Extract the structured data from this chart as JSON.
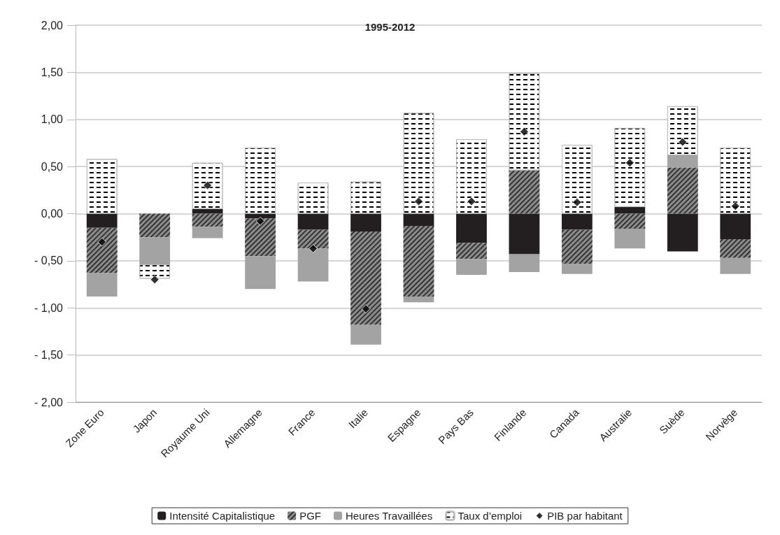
{
  "chart_data": {
    "type": "bar",
    "title": "1995-2012",
    "stacked": true,
    "grid": "y",
    "legend": "bottom",
    "categories": [
      "Zone Euro",
      "Japon",
      "Royaume Uni",
      "Allemagne",
      "France",
      "Italie",
      "Espagne",
      "Pays Bas",
      "Finlande",
      "Canada",
      "Australie",
      "Suède",
      "Norvège"
    ],
    "ylim": [
      -2,
      2
    ],
    "yticks": [
      {
        "value": -2,
        "label": "- 2,00"
      },
      {
        "value": -1.5,
        "label": "- 1,50"
      },
      {
        "value": -1,
        "label": "- 1,00"
      },
      {
        "value": -0.5,
        "label": "- 0,50"
      },
      {
        "value": 0,
        "label": "0,00"
      },
      {
        "value": 0.5,
        "label": "0,50"
      },
      {
        "value": 1,
        "label": "1,00"
      },
      {
        "value": 1.5,
        "label": "1,50"
      },
      {
        "value": 2,
        "label": "2,00"
      }
    ],
    "series": [
      {
        "name": "Intensité Capitalistique",
        "color": "#231f20",
        "values": [
          -0.15,
          0,
          0.05,
          -0.05,
          -0.17,
          -0.19,
          -0.13,
          -0.31,
          -0.43,
          -0.17,
          0.07,
          -0.4,
          -0.27
        ]
      },
      {
        "name": "PGF",
        "color": "#8c8c8c",
        "values": [
          -0.48,
          -0.25,
          -0.14,
          -0.4,
          -0.2,
          -0.99,
          -0.75,
          -0.17,
          0.46,
          -0.36,
          -0.16,
          0.49,
          -0.2
        ]
      },
      {
        "name": "Heures Travaillées",
        "color": "#a3a3a4",
        "values": [
          -0.25,
          -0.29,
          -0.12,
          -0.35,
          -0.35,
          -0.21,
          -0.06,
          -0.17,
          -0.19,
          -0.11,
          -0.21,
          0.13,
          -0.17
        ]
      },
      {
        "name": "Taux d’emploi",
        "color": "#ffffff",
        "values": [
          0.58,
          -0.15,
          0.49,
          0.7,
          0.33,
          0.34,
          1.07,
          0.79,
          1.03,
          0.73,
          0.84,
          0.52,
          0.7
        ]
      },
      {
        "name": "PIB par habitant",
        "type": "scatter",
        "marker": "diamond",
        "color": "#000000",
        "x": [
          "Zone Euro",
          "Japon",
          "Royaume Uni",
          "Allemagne",
          "France",
          "Italie",
          "Espagne",
          "Pays Bas",
          "Finlande",
          "Canada",
          "Australie",
          "Suède",
          "Norvège"
        ],
        "values": [
          -0.3,
          -0.7,
          0.3,
          -0.08,
          -0.37,
          -1.01,
          0.13,
          0.13,
          0.87,
          0.12,
          0.54,
          0.76,
          0.08
        ]
      }
    ]
  }
}
